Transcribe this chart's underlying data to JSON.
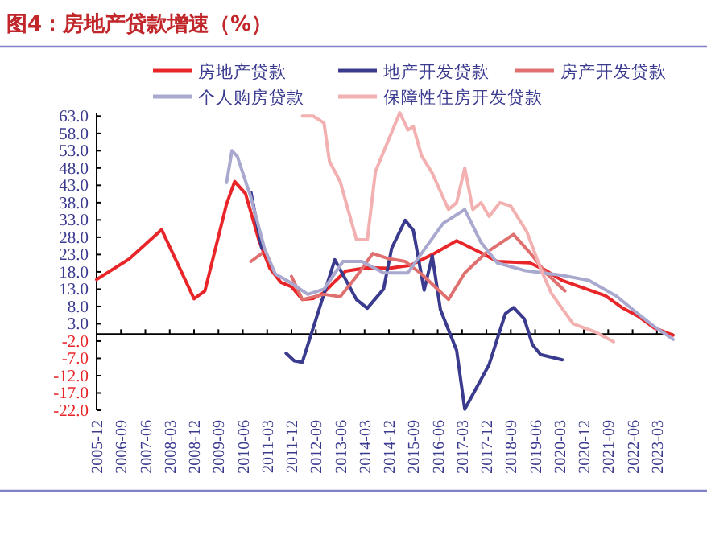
{
  "chart_data": {
    "type": "line",
    "title": "图4：房地产贷款增速（%）",
    "legend": "top",
    "grid": false,
    "marker": "none",
    "line_style": "solid",
    "xlim": [
      "2005-12",
      "2023-09"
    ],
    "ylim": [
      -22,
      64
    ],
    "xticks": [
      "2005-12",
      "2006-09",
      "2007-06",
      "2008-03",
      "2008-12",
      "2009-09",
      "2010-06",
      "2011-03",
      "2011-12",
      "2012-09",
      "2013-06",
      "2014-03",
      "2014-12",
      "2015-09",
      "2016-06",
      "2017-03",
      "2017-12",
      "2018-09",
      "2019-06",
      "2020-03",
      "2020-12",
      "2021-09",
      "2022-06",
      "2023-03"
    ],
    "yticks": [
      {
        "value": 63,
        "label": "63.0"
      },
      {
        "value": 58,
        "label": "58.0"
      },
      {
        "value": 53,
        "label": "53.0"
      },
      {
        "value": 48,
        "label": "48.0"
      },
      {
        "value": 43,
        "label": "43.0"
      },
      {
        "value": 38,
        "label": "38.0"
      },
      {
        "value": 33,
        "label": "33.0"
      },
      {
        "value": 28,
        "label": "28.0"
      },
      {
        "value": 23,
        "label": "23.0"
      },
      {
        "value": 18,
        "label": "18.0"
      },
      {
        "value": 13,
        "label": "13.0"
      },
      {
        "value": 8,
        "label": "8.0"
      },
      {
        "value": 3,
        "label": "3.0"
      },
      {
        "value": -2,
        "label": "-2.0"
      },
      {
        "value": -7,
        "label": "-7.0"
      },
      {
        "value": -12,
        "label": "-12.0"
      },
      {
        "value": -17,
        "label": "-17.0"
      },
      {
        "value": -22,
        "label": "-22.0"
      }
    ],
    "series": [
      {
        "name": "房地产贷款",
        "color": "#e8262a",
        "x": [
          "2005-12",
          "2006-12",
          "2007-12",
          "2008-12",
          "2009-04",
          "2009-12",
          "2010-03",
          "2010-07",
          "2010-12",
          "2011-04",
          "2011-08",
          "2011-12",
          "2012-04",
          "2012-08",
          "2012-12",
          "2013-04",
          "2013-08",
          "2014-04",
          "2014-12",
          "2015-08",
          "2016-04",
          "2017-01",
          "2017-10",
          "2018-04",
          "2019-04",
          "2019-10",
          "2020-04",
          "2020-12",
          "2021-08",
          "2022-02",
          "2022-08",
          "2023-02",
          "2023-09"
        ],
        "values": [
          15.8,
          21.7,
          30.2,
          10.2,
          12.5,
          37.6,
          44.1,
          40.6,
          27,
          19,
          15,
          13.7,
          10,
          10.3,
          12,
          15.2,
          18.2,
          19.2,
          19,
          19.9,
          23,
          27,
          23.5,
          21,
          20.6,
          18.4,
          15.5,
          13.3,
          11.1,
          7.7,
          5.2,
          1.8,
          -0.3
        ]
      },
      {
        "name": "地产开发贷款",
        "color": "#3a3a8f",
        "x": [
          "2010-09",
          "2011-01",
          "2011-05",
          "2011-10",
          "2012-01",
          "2012-04",
          "2013-04",
          "2013-12",
          "2014-04",
          "2014-10",
          "2015-01",
          "2015-06",
          "2015-09",
          "2016-01",
          "2016-04",
          "2016-07",
          "2017-01",
          "2017-04",
          "2018-01",
          "2018-07",
          "2018-10",
          "2019-02",
          "2019-05",
          "2019-08",
          "2020-04"
        ],
        "values": [
          41,
          24.8,
          null,
          -5.5,
          -7.7,
          -8.1,
          21.5,
          10,
          7.5,
          13,
          24.8,
          32.9,
          30,
          12.7,
          22.6,
          7.1,
          -4.7,
          -21.7,
          -8.8,
          5.9,
          7.7,
          4.4,
          -3,
          -5.9,
          -7.4
        ]
      },
      {
        "name": "房产开发贷款",
        "color": "#e07070",
        "x": [
          "2010-09",
          "2011-01",
          "2011-05",
          "2011-12",
          "2012-04",
          "2012-12",
          "2013-06",
          "2013-12",
          "2014-06",
          "2014-12",
          "2015-06",
          "2015-12",
          "2016-10",
          "2017-04",
          "2017-12",
          "2018-10",
          "2019-04",
          "2019-10",
          "2020-05"
        ],
        "values": [
          21,
          23.3,
          null,
          16.7,
          10,
          11.5,
          10.8,
          16.7,
          23.3,
          21.8,
          21,
          17.4,
          10,
          17.7,
          23.6,
          28.8,
          23.6,
          17.7,
          12.5
        ]
      },
      {
        "name": "个人购房贷款",
        "color": "#a9a9cf",
        "x": [
          "2009-12",
          "2010-02",
          "2010-04",
          "2010-09",
          "2011-02",
          "2011-06",
          "2011-11",
          "2012-06",
          "2012-12",
          "2013-07",
          "2014-02",
          "2014-10",
          "2015-07",
          "2015-12",
          "2016-08",
          "2017-04",
          "2017-10",
          "2018-04",
          "2019-02",
          "2020-04",
          "2021-02",
          "2021-12",
          "2022-08",
          "2023-02",
          "2023-09"
        ],
        "values": [
          43.8,
          53,
          51.3,
          39.5,
          24.8,
          17.4,
          15.2,
          11.5,
          13,
          21,
          21,
          17.7,
          17.7,
          23.3,
          32,
          36,
          26.5,
          20.6,
          18.4,
          17,
          15.5,
          11,
          5.9,
          2.2,
          -1.5
        ]
      },
      {
        "name": "保障性住房开发贷款",
        "color": "#f3b0b0",
        "x": [
          "2012-04",
          "2012-08",
          "2012-12",
          "2013-02",
          "2013-06",
          "2013-12",
          "2014-04",
          "2014-07",
          "2015-04",
          "2015-07",
          "2015-09",
          "2015-12",
          "2016-04",
          "2016-10",
          "2017-01",
          "2017-04",
          "2017-07",
          "2017-10",
          "2018-01",
          "2018-05",
          "2018-09",
          "2019-03",
          "2019-08",
          "2019-12",
          "2020-08",
          "2021-04",
          "2021-11"
        ],
        "values": [
          63,
          63,
          61,
          50,
          44,
          27.3,
          27.3,
          47,
          64,
          59,
          60,
          51.6,
          46.5,
          36,
          38,
          48,
          36,
          38,
          34,
          38,
          37,
          29.5,
          19,
          11.8,
          3,
          0.7,
          -2.2
        ]
      }
    ]
  }
}
